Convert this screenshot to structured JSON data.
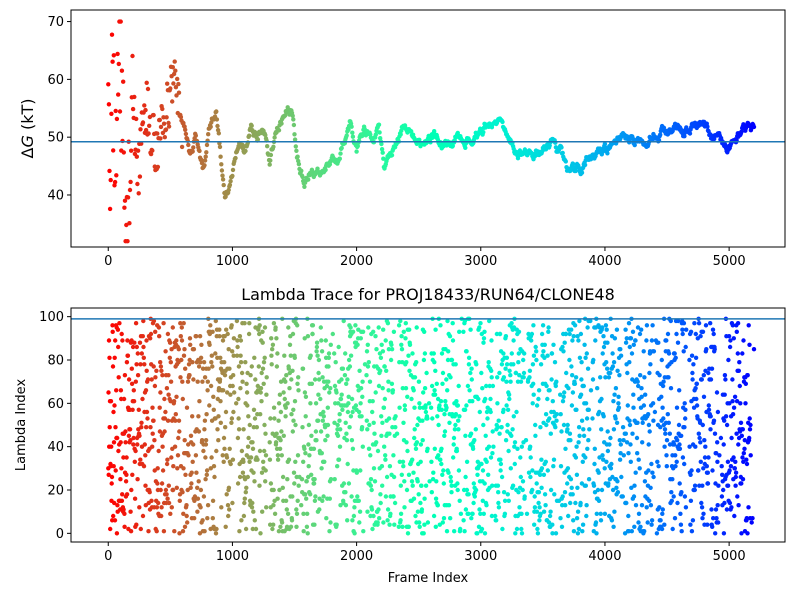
{
  "chart_data": [
    {
      "type": "scatter",
      "title": "",
      "xlabel": "",
      "ylabel": "ΔG (kT)",
      "ylabel_prefix": "Δ",
      "ylabel_var": "G",
      "ylabel_unit": " (kT)",
      "xlim": [
        -300,
        5450
      ],
      "ylim": [
        31,
        72
      ],
      "xticks": [
        0,
        1000,
        2000,
        3000,
        4000,
        5000
      ],
      "yticks": [
        40,
        50,
        60,
        70
      ],
      "hline": 49.2,
      "hline_color": "#1f77b4",
      "colormap": "rainbow",
      "n_frames": 5200,
      "trace_anchors": [
        [
          0,
          70
        ],
        [
          15,
          38
        ],
        [
          30,
          62
        ],
        [
          60,
          45
        ],
        [
          90,
          66
        ],
        [
          120,
          50
        ],
        [
          150,
          34
        ],
        [
          190,
          58
        ],
        [
          240,
          44
        ],
        [
          300,
          56
        ],
        [
          380,
          48
        ],
        [
          460,
          55
        ],
        [
          540,
          59
        ],
        [
          600,
          52
        ],
        [
          650,
          47
        ],
        [
          700,
          50
        ],
        [
          760,
          44
        ],
        [
          820,
          52
        ],
        [
          870,
          54
        ],
        [
          940,
          39
        ],
        [
          1000,
          43
        ],
        [
          1050,
          50
        ],
        [
          1100,
          48
        ],
        [
          1150,
          52
        ],
        [
          1200,
          50
        ],
        [
          1250,
          53
        ],
        [
          1300,
          46
        ],
        [
          1350,
          50
        ],
        [
          1420,
          54
        ],
        [
          1480,
          55
        ],
        [
          1520,
          47
        ],
        [
          1580,
          42
        ],
        [
          1640,
          45
        ],
        [
          1700,
          44
        ],
        [
          1760,
          46
        ],
        [
          1850,
          46
        ],
        [
          1950,
          53
        ],
        [
          2000,
          48
        ],
        [
          2060,
          51
        ],
        [
          2120,
          50
        ],
        [
          2180,
          52
        ],
        [
          2220,
          45
        ],
        [
          2280,
          47
        ],
        [
          2340,
          50
        ],
        [
          2380,
          52
        ],
        [
          2420,
          52
        ],
        [
          2460,
          50
        ],
        [
          2520,
          49
        ],
        [
          2580,
          51
        ],
        [
          2640,
          50
        ],
        [
          2700,
          49
        ],
        [
          2760,
          49
        ],
        [
          2820,
          50
        ],
        [
          2900,
          50
        ],
        [
          2980,
          51
        ],
        [
          3040,
          52
        ],
        [
          3100,
          53
        ],
        [
          3180,
          51
        ],
        [
          3240,
          49
        ],
        [
          3300,
          46
        ],
        [
          3380,
          47
        ],
        [
          3460,
          48
        ],
        [
          3560,
          49
        ],
        [
          3640,
          47
        ],
        [
          3700,
          44
        ],
        [
          3760,
          44
        ],
        [
          3850,
          46
        ],
        [
          3950,
          47
        ],
        [
          4060,
          49
        ],
        [
          4120,
          50
        ],
        [
          4180,
          50
        ],
        [
          4240,
          49
        ],
        [
          4300,
          50
        ],
        [
          4360,
          51
        ],
        [
          4420,
          50
        ],
        [
          4500,
          51
        ],
        [
          4580,
          51
        ],
        [
          4660,
          51
        ],
        [
          4740,
          52
        ],
        [
          4800,
          53
        ],
        [
          4850,
          50
        ],
        [
          4920,
          50
        ],
        [
          4980,
          49
        ],
        [
          5050,
          49
        ],
        [
          5120,
          51
        ],
        [
          5200,
          51
        ]
      ]
    },
    {
      "type": "scatter",
      "title": "Lambda Trace for PROJ18433/RUN64/CLONE48",
      "xlabel": "Frame Index",
      "ylabel": "Lambda Index",
      "xlim": [
        -300,
        5450
      ],
      "ylim": [
        -4,
        104
      ],
      "xticks": [
        0,
        1000,
        2000,
        3000,
        4000,
        5000
      ],
      "yticks": [
        0,
        20,
        40,
        60,
        80,
        100
      ],
      "hline": 99,
      "hline_color": "#1f77b4",
      "colormap": "rainbow",
      "n_frames": 5200,
      "lambda_min": 0,
      "lambda_max": 99
    }
  ]
}
